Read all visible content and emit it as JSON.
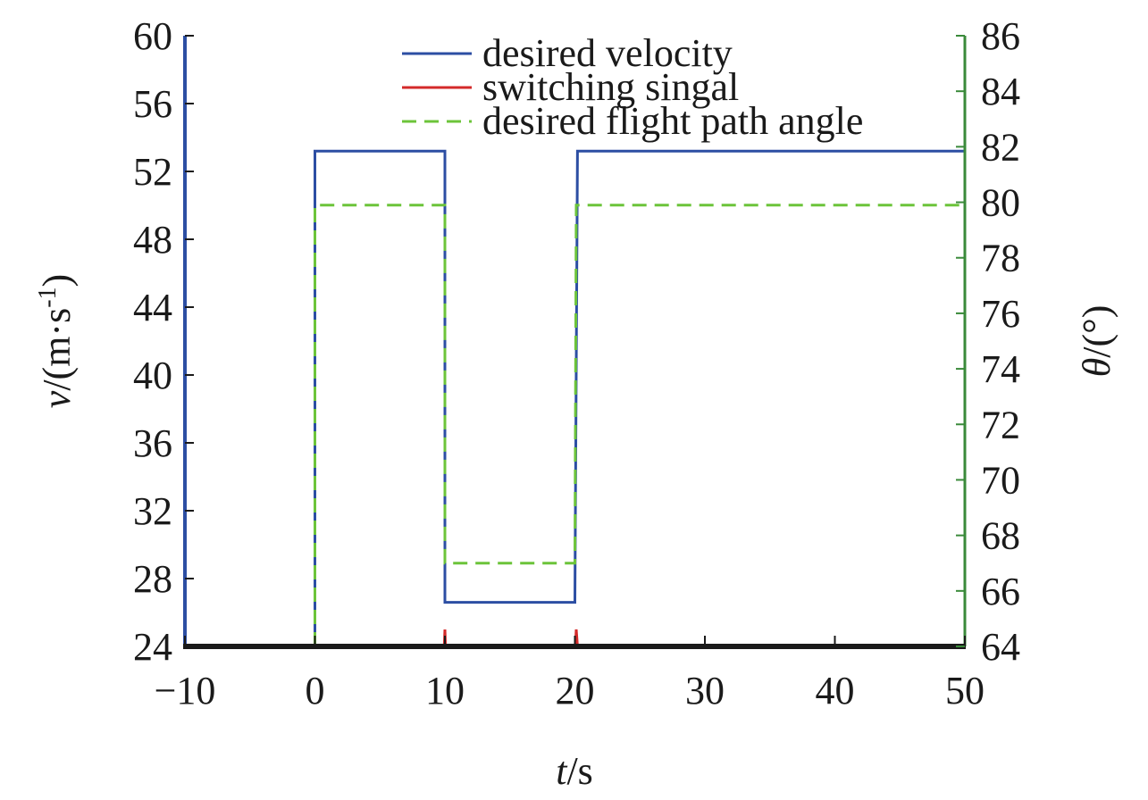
{
  "chart_data": {
    "type": "line",
    "title": "",
    "xlabel": {
      "var": "t",
      "unit": "/s"
    },
    "ylabel": {
      "var": "v",
      "unit_pre": "/(m·s",
      "unit_sup": "-1",
      "unit_post": ")"
    },
    "y2label": {
      "var": "θ",
      "unit": "/(°)"
    },
    "xlim": [
      -10,
      50
    ],
    "ylim": [
      24,
      60
    ],
    "y2lim": [
      64,
      86
    ],
    "x_ticks": [
      -10,
      0,
      10,
      20,
      30,
      40,
      50
    ],
    "x_tick_labels": [
      "−10",
      "0",
      "10",
      "20",
      "30",
      "40",
      "50"
    ],
    "y_ticks": [
      24,
      28,
      32,
      36,
      40,
      44,
      48,
      52,
      56,
      60
    ],
    "y_tick_labels": [
      "24",
      "28",
      "32",
      "36",
      "40",
      "44",
      "48",
      "52",
      "56",
      "60"
    ],
    "y2_ticks": [
      64,
      66,
      68,
      70,
      72,
      74,
      76,
      78,
      80,
      82,
      84,
      86
    ],
    "y2_tick_labels": [
      "64",
      "66",
      "68",
      "70",
      "72",
      "74",
      "76",
      "78",
      "80",
      "82",
      "84",
      "86"
    ],
    "grid": false,
    "legend_position": "top-right",
    "series": [
      {
        "name": "desired velocity",
        "axis": "left",
        "style": "solid",
        "color": "#2c4ea3",
        "x": [
          -10,
          0,
          0,
          10,
          10,
          20,
          20.2,
          50
        ],
        "y": [
          24,
          24,
          53.2,
          53.2,
          26.6,
          26.6,
          53.2,
          53.2
        ]
      },
      {
        "name": "switching singal",
        "axis": "left",
        "style": "solid",
        "color": "#d42a2a",
        "x": [
          -10,
          9.95,
          10,
          10.05,
          20.05,
          20.1,
          20.2,
          50
        ],
        "y": [
          24,
          24,
          25,
          24,
          24,
          25,
          24,
          24
        ]
      },
      {
        "name": "desired flight path angle",
        "axis": "right",
        "style": "dashed",
        "color": "#6cc43a",
        "x": [
          0,
          0,
          10,
          10,
          20,
          20.1,
          50
        ],
        "y": [
          64,
          79.9,
          79.9,
          67,
          67,
          79.9,
          79.9
        ]
      }
    ],
    "colors": {
      "left_axis": "#2c4ea3",
      "right_axis": "#3a8a3a",
      "frame": "#1a1a1a"
    }
  }
}
